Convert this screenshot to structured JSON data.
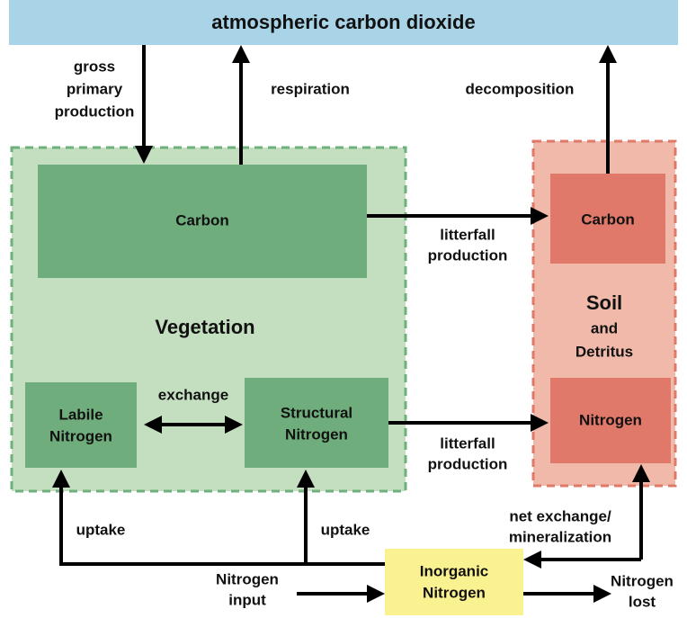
{
  "title": "atmospheric carbon dioxide",
  "vegetation": {
    "label": "Vegetation",
    "carbon": "Carbon",
    "labile_nitrogen": [
      "Labile",
      "Nitrogen"
    ],
    "structural_nitrogen": [
      "Structural",
      "Nitrogen"
    ]
  },
  "soil": {
    "label": [
      "Soil",
      "and",
      "Detritus"
    ],
    "carbon": "Carbon",
    "nitrogen": "Nitrogen"
  },
  "inorganic_nitrogen": [
    "Inorganic",
    "Nitrogen"
  ],
  "edges": {
    "gross_primary_production": [
      "gross",
      "primary",
      "production"
    ],
    "respiration": "respiration",
    "decomposition": "decomposition",
    "litterfall_carbon": [
      "litterfall",
      "production"
    ],
    "litterfall_nitrogen": [
      "litterfall",
      "production"
    ],
    "exchange": "exchange",
    "uptake_labile": "uptake",
    "uptake_structural": "uptake",
    "net_exchange": [
      "net exchange/",
      "mineralization"
    ],
    "nitrogen_input": [
      "Nitrogen",
      "input"
    ],
    "nitrogen_lost": [
      "Nitrogen",
      "lost"
    ]
  }
}
